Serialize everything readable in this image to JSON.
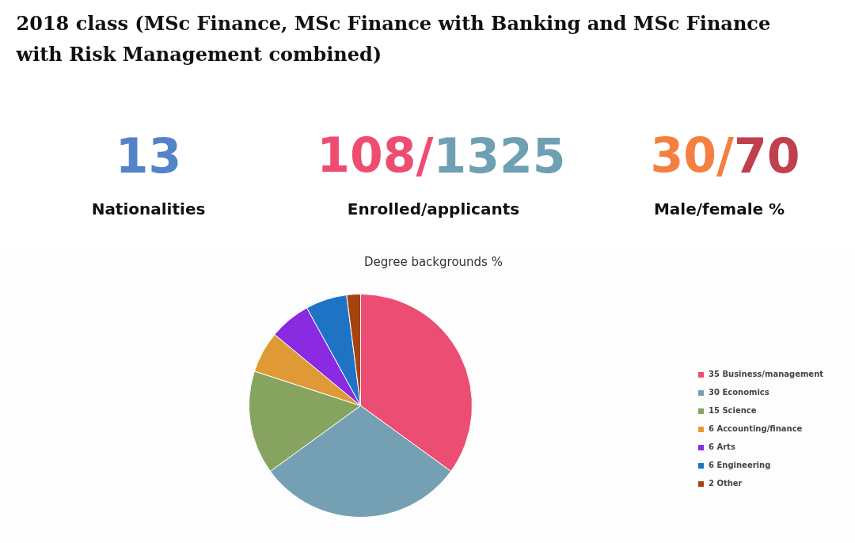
{
  "chart_data": [
    {
      "type": "other",
      "title": "2018 class (MSc Finance, MSc Finance with Banking and MSc Finance with Risk Management combined)",
      "annotations": [
        "13",
        "Nationalities",
        "108/1325",
        "Enrolled/applicants",
        "30/70",
        "Male/female %"
      ],
      "colors": [
        [
          "#5583c8"
        ],
        [
          "#ee4d72",
          "#6f9fb3"
        ],
        [
          "#f47f40",
          "#c0404e"
        ]
      ]
    },
    {
      "type": "pie",
      "title": "Degree backgrounds %",
      "categories": [
        "35 Business/management",
        "30 Economics",
        "15 Science",
        "6 Accounting/finance",
        "6 Arts",
        "6 Engineering",
        "2 Other"
      ],
      "values": [
        35,
        30,
        15,
        6,
        6,
        6,
        2
      ],
      "colors": [
        "#ec4d73",
        "#75a0b4",
        "#86a45f",
        "#e09a35",
        "#8a2be2",
        "#1f73c4",
        "#a5440f"
      ],
      "legend": "right"
    }
  ]
}
